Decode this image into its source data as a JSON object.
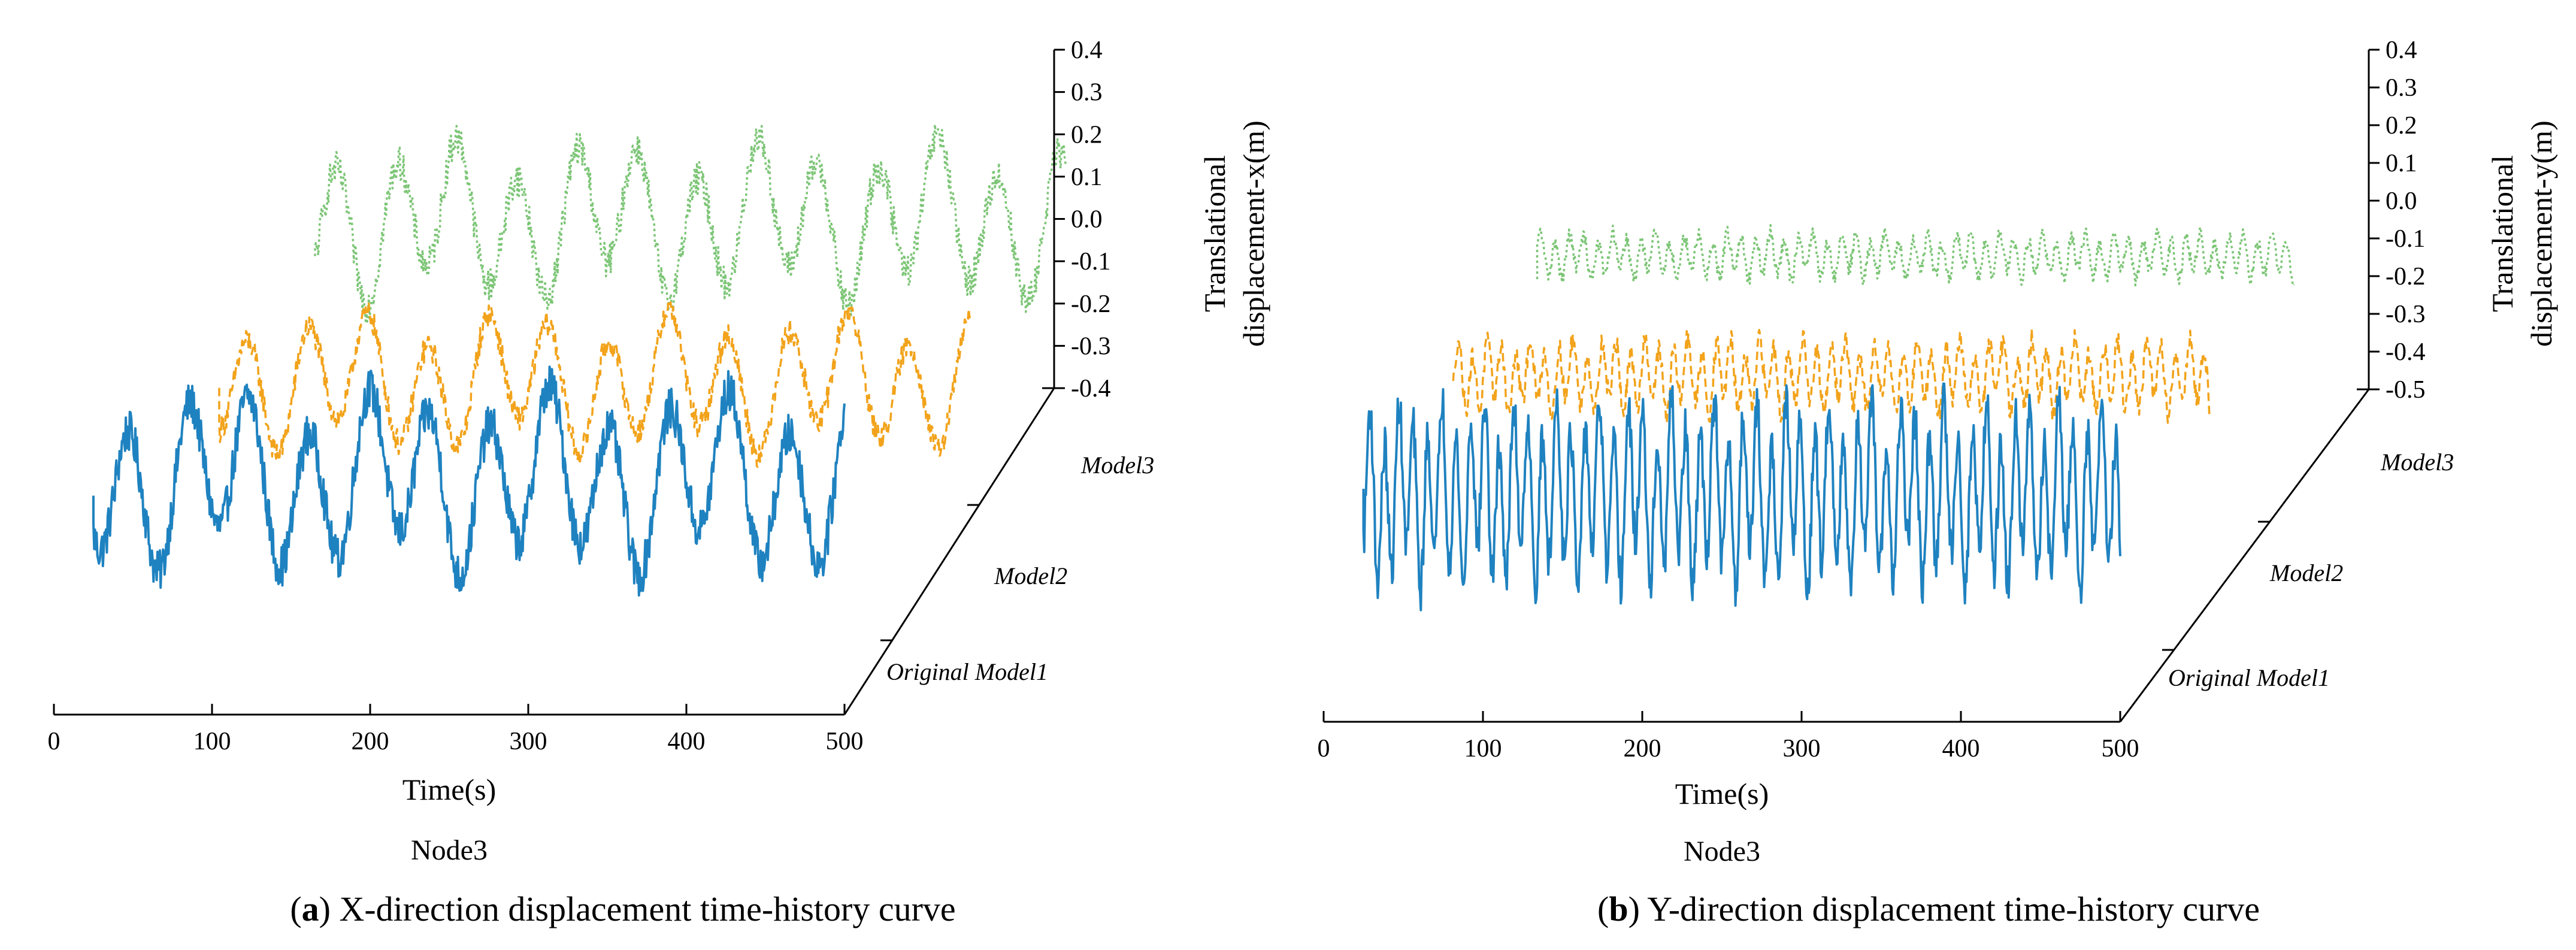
{
  "chart_data": [
    {
      "type": "line",
      "view": "3d-waterfall",
      "panel_label": "a",
      "caption": "X-direction displacement time-history curve",
      "node_label": "Node3",
      "xlabel": "Time(s)",
      "xlim": [
        0,
        500
      ],
      "x_ticks": [
        "0",
        "100",
        "200",
        "300",
        "400",
        "500"
      ],
      "zlabel_line1": "Translational",
      "zlabel_line2": "displacement-x(m)",
      "zlim": [
        -0.4,
        0.4
      ],
      "z_ticks": [
        "0.4",
        "0.3",
        "0.2",
        "0.1",
        "0.0",
        "-0.1",
        "-0.2",
        "-0.3",
        "-0.4"
      ],
      "depth_labels": [
        "Original Model1",
        "Model2",
        "Model3"
      ],
      "series": [
        {
          "name": "Original Model1",
          "color": "#1f82c0",
          "style": "solid",
          "t_start": 25,
          "t_end": 500,
          "mean": -0.1,
          "amplitude": 0.17,
          "period": 38,
          "noise": 0.05
        },
        {
          "name": "Model2",
          "color": "#f2a31b",
          "style": "dashed",
          "t_start": 25,
          "t_end": 500,
          "mean": -0.12,
          "amplitude": 0.13,
          "period": 38,
          "noise": 0.03
        },
        {
          "name": "Model3",
          "color": "#7cc576",
          "style": "dotted",
          "t_start": 25,
          "t_end": 500,
          "mean": -0.05,
          "amplitude": 0.15,
          "period": 38,
          "noise": 0.04
        }
      ]
    },
    {
      "type": "line",
      "view": "3d-waterfall",
      "panel_label": "b",
      "caption": "Y-direction displacement time-history curve",
      "node_label": "Node3",
      "xlabel": "Time(s)",
      "xlim": [
        0,
        500
      ],
      "x_ticks": [
        "0",
        "100",
        "200",
        "300",
        "400",
        "500"
      ],
      "zlabel_line1": "Translational",
      "zlabel_line2": "displacement-y(m)",
      "zlim": [
        -0.5,
        0.4
      ],
      "z_ticks": [
        "0.4",
        "0.3",
        "0.2",
        "0.1",
        "0.0",
        "-0.1",
        "-0.2",
        "-0.3",
        "-0.4",
        "-0.5"
      ],
      "depth_labels": [
        "Original Model1",
        "Model2",
        "Model3"
      ],
      "series": [
        {
          "name": "Original Model1",
          "color": "#1f82c0",
          "style": "solid",
          "t_start": 25,
          "t_end": 500,
          "mean": -0.15,
          "amplitude": 0.2,
          "period": 9,
          "noise": 0.06
        },
        {
          "name": "Model2",
          "color": "#f2a31b",
          "style": "dashed",
          "t_start": 25,
          "t_end": 500,
          "mean": -0.12,
          "amplitude": 0.08,
          "period": 9,
          "noise": 0.03
        },
        {
          "name": "Model3",
          "color": "#7cc576",
          "style": "dotted",
          "t_start": 25,
          "t_end": 500,
          "mean": -0.07,
          "amplitude": 0.05,
          "period": 9,
          "noise": 0.02
        }
      ]
    }
  ]
}
